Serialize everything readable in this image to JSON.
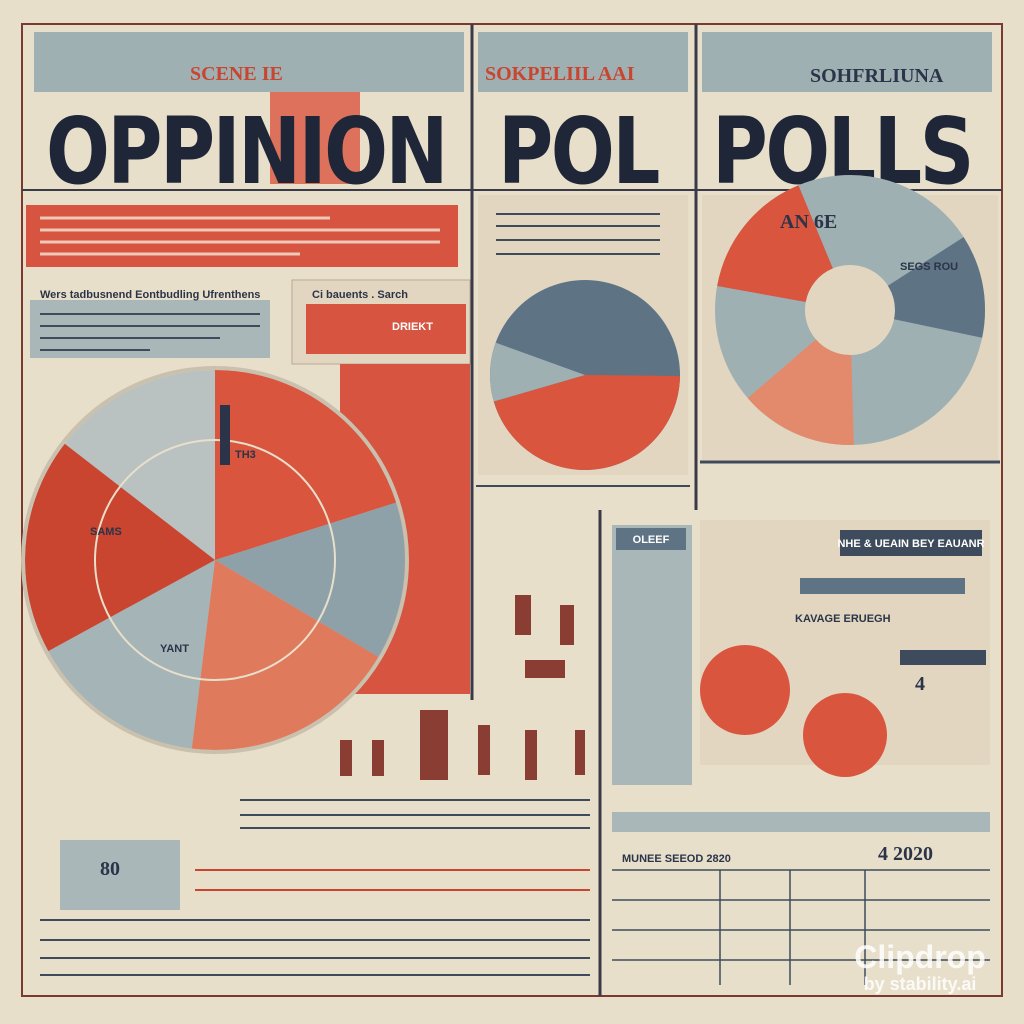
{
  "header": {
    "left_tag": "SCENE IE",
    "left_title": "OPPINION",
    "mid_tag": "SOKPELIIL AAI",
    "mid_title": "POL",
    "right_tag": "SOHFRLIUNA",
    "right_title": "POLLS"
  },
  "panels": {
    "left_heading": "Wers tadbusnend Eontbudling Ufrenthens",
    "left_box": "Ci bauents . Sarch",
    "left_box_red": "DRIEKT",
    "pie_label": "SAMS",
    "pie_center": "YANT",
    "pie_top": "TH3",
    "right_pie_title": "AN 6E",
    "right_pie_label": "SEGS ROU"
  },
  "sections": {
    "oleef": "OLEEF",
    "banner": "NHE & UEAIN BEY EAUANR",
    "kavage": "KAVAGE ERUEGH",
    "number_big": "4",
    "bottom_right": "4 2020",
    "bottom_mid": "MUNEE SEEOD 2820",
    "bottom_left": "80"
  },
  "watermark": {
    "brand": "Clipdrop",
    "by": "by stability.ai"
  }
}
